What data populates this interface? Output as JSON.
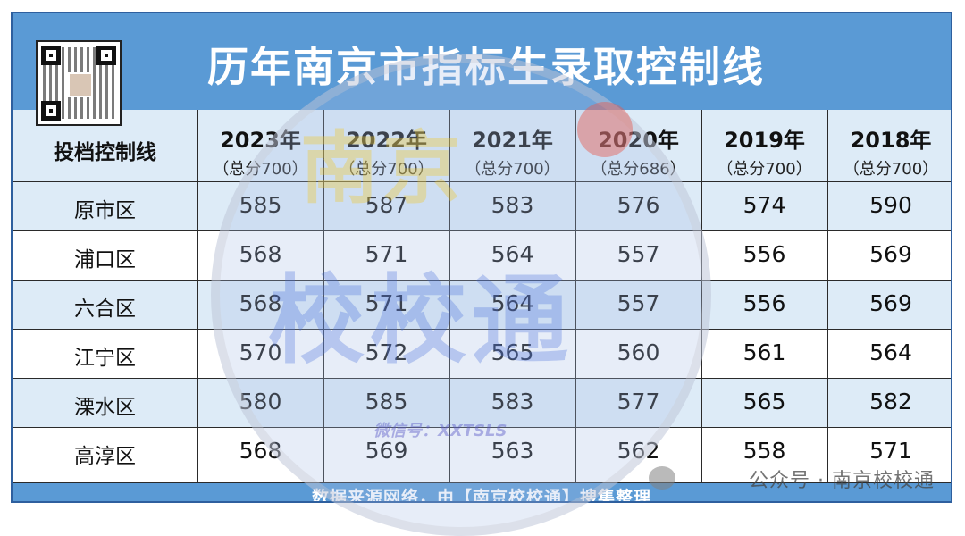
{
  "title": "历年南京市指标生录取控制线",
  "header_label": "投档控制线",
  "years": [
    {
      "year": "2023年",
      "total": "（总分700）"
    },
    {
      "year": "2022年",
      "total": "（总分700）"
    },
    {
      "year": "2021年",
      "total": "（总分700）"
    },
    {
      "year": "2020年",
      "total": "（总分686）"
    },
    {
      "year": "2019年",
      "total": "（总分700）"
    },
    {
      "year": "2018年",
      "total": "（总分700）"
    }
  ],
  "rows": [
    {
      "region": "原市区",
      "scores": [
        "585",
        "587",
        "583",
        "576",
        "574",
        "590"
      ]
    },
    {
      "region": "浦口区",
      "scores": [
        "568",
        "571",
        "564",
        "557",
        "556",
        "569"
      ]
    },
    {
      "region": "六合区",
      "scores": [
        "568",
        "571",
        "564",
        "557",
        "556",
        "569"
      ]
    },
    {
      "region": "江宁区",
      "scores": [
        "570",
        "572",
        "565",
        "560",
        "561",
        "564"
      ]
    },
    {
      "region": "溧水区",
      "scores": [
        "580",
        "585",
        "583",
        "577",
        "565",
        "582"
      ]
    },
    {
      "region": "高淳区",
      "scores": [
        "568",
        "569",
        "563",
        "562",
        "558",
        "571"
      ]
    }
  ],
  "footer": "数据来源网络，由【南京校校通】搜集整理",
  "watermark": {
    "line1": "南京",
    "line2": "校校通",
    "wechat": "微信号：XXTSLS"
  },
  "brand": "公众号 · 南京校校通",
  "colors": {
    "header_blue": "#5a9ad5",
    "row_light_blue": "#ddebf7"
  }
}
